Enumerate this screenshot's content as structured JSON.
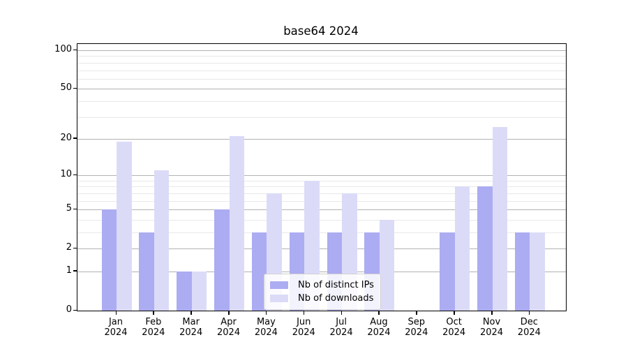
{
  "title": "base64 2024",
  "chart_data": {
    "type": "bar",
    "title": "base64 2024",
    "xlabel": "",
    "ylabel": "",
    "scale": "log1p",
    "ylim": [
      0,
      112
    ],
    "grid": true,
    "legend_position": "lower center",
    "categories": [
      "Jan",
      "Feb",
      "Mar",
      "Apr",
      "May",
      "Jun",
      "Jul",
      "Aug",
      "Sep",
      "Oct",
      "Nov",
      "Dec"
    ],
    "category_second_line": "2024",
    "series": [
      {
        "name": "Nb of distinct IPs",
        "color": "#acacf2",
        "values": [
          5,
          3,
          1,
          5,
          3,
          3,
          3,
          3,
          0,
          3,
          8,
          3
        ]
      },
      {
        "name": "Nb of downloads",
        "color": "#dbdbf8",
        "values": [
          19,
          11,
          1,
          21,
          7,
          9,
          7,
          4,
          0,
          8,
          25,
          3
        ]
      }
    ],
    "y_ticks": [
      0,
      1,
      2,
      5,
      10,
      20,
      50,
      100
    ],
    "y_minor_gridlines": [
      3,
      4,
      6,
      7,
      8,
      9,
      30,
      40,
      60,
      70,
      80,
      90
    ]
  },
  "legend": {
    "items": [
      {
        "label": "Nb of distinct IPs"
      },
      {
        "label": "Nb of downloads"
      }
    ]
  }
}
